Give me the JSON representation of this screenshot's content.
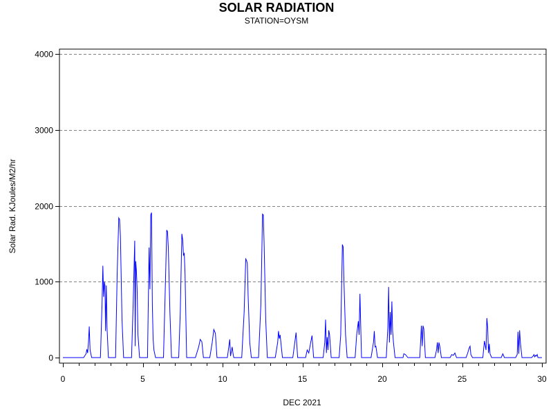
{
  "chart_data": {
    "type": "line",
    "title": "SOLAR RADIATION",
    "subtitle": "STATION=OYSM",
    "xlabel": "DEC 2021",
    "ylabel": "Solar Rad. KJoules/M2/hr",
    "xlim": [
      0,
      30
    ],
    "ylim": [
      0,
      4000
    ],
    "x_ticks": [
      0,
      5,
      10,
      15,
      20,
      25,
      30
    ],
    "y_ticks": [
      0,
      1000,
      2000,
      3000,
      4000
    ],
    "grid": "horizontal dashed",
    "line_color": "#0000ff",
    "series": [
      {
        "x": [
          0.0,
          1.3,
          1.45,
          1.5,
          1.55,
          1.6,
          1.65,
          1.7,
          1.8,
          2.35,
          2.45,
          2.5,
          2.55,
          2.6,
          2.63,
          2.67,
          2.72,
          2.76,
          2.85,
          3.3,
          3.4,
          3.5,
          3.55,
          3.6,
          3.7,
          3.8,
          4.3,
          4.4,
          4.5,
          4.53,
          4.56,
          4.6,
          4.65,
          4.7,
          4.8,
          5.3,
          5.4,
          5.45,
          5.5,
          5.55,
          5.6,
          5.65,
          5.7,
          5.8,
          6.3,
          6.4,
          6.5,
          6.55,
          6.6,
          6.7,
          6.8,
          7.25,
          7.35,
          7.45,
          7.5,
          7.55,
          7.6,
          7.65,
          7.75,
          8.3,
          8.5,
          8.6,
          8.7,
          8.8,
          9.2,
          9.35,
          9.45,
          9.55,
          9.65,
          10.3,
          10.45,
          10.5,
          10.55,
          10.6,
          10.65,
          10.7,
          11.2,
          11.35,
          11.45,
          11.5,
          11.55,
          11.6,
          11.7,
          11.8,
          12.25,
          12.4,
          12.5,
          12.55,
          12.6,
          12.7,
          12.8,
          13.3,
          13.45,
          13.5,
          13.55,
          13.6,
          13.75,
          14.4,
          14.5,
          14.6,
          14.7,
          15.2,
          15.3,
          15.4,
          15.5,
          15.6,
          15.7,
          16.3,
          16.4,
          16.45,
          16.5,
          16.55,
          16.6,
          16.65,
          16.7,
          16.8,
          17.3,
          17.4,
          17.5,
          17.55,
          17.6,
          17.7,
          17.8,
          18.3,
          18.4,
          18.5,
          18.55,
          18.6,
          18.7,
          19.3,
          19.45,
          19.5,
          19.55,
          19.6,
          19.7,
          20.25,
          20.35,
          20.4,
          20.45,
          20.5,
          20.55,
          20.6,
          20.65,
          20.7,
          20.8,
          21.3,
          21.35,
          21.45,
          21.6,
          22.35,
          22.45,
          22.5,
          22.55,
          22.6,
          22.7,
          23.3,
          23.4,
          23.45,
          23.5,
          23.55,
          23.6,
          23.7,
          24.25,
          24.35,
          24.45,
          24.55,
          24.65,
          25.25,
          25.35,
          25.45,
          25.5,
          25.55,
          25.65,
          26.3,
          26.4,
          26.5,
          26.55,
          26.6,
          26.65,
          26.7,
          26.75,
          26.85,
          27.45,
          27.55,
          27.65,
          28.35,
          28.45,
          28.5,
          28.55,
          28.6,
          28.65,
          28.75,
          29.35,
          29.45,
          29.5,
          29.55,
          29.6,
          29.65,
          29.7,
          29.75,
          30.0
        ],
        "y": [
          0,
          0,
          50,
          110,
          60,
          200,
          410,
          100,
          0,
          0,
          700,
          1210,
          800,
          1000,
          950,
          350,
          950,
          400,
          0,
          0,
          1100,
          1840,
          1820,
          1600,
          500,
          0,
          0,
          700,
          1540,
          150,
          1270,
          1150,
          900,
          300,
          0,
          0,
          1450,
          900,
          1880,
          1910,
          700,
          250,
          100,
          0,
          0,
          800,
          1680,
          1660,
          1450,
          600,
          0,
          0,
          600,
          1630,
          1550,
          1350,
          1370,
          1100,
          0,
          0,
          140,
          240,
          210,
          0,
          0,
          200,
          370,
          320,
          0,
          0,
          240,
          20,
          80,
          140,
          60,
          0,
          0,
          600,
          1300,
          1280,
          1240,
          800,
          200,
          0,
          0,
          700,
          1890,
          1880,
          1500,
          500,
          0,
          0,
          200,
          350,
          250,
          300,
          0,
          0,
          160,
          330,
          0,
          0,
          100,
          60,
          180,
          290,
          0,
          0,
          200,
          500,
          60,
          270,
          100,
          360,
          300,
          0,
          0,
          300,
          1490,
          1460,
          1000,
          300,
          0,
          0,
          300,
          480,
          300,
          840,
          0,
          0,
          200,
          350,
          140,
          150,
          0,
          0,
          400,
          930,
          200,
          600,
          300,
          740,
          350,
          200,
          0,
          0,
          50,
          40,
          0,
          0,
          420,
          150,
          420,
          380,
          0,
          0,
          100,
          200,
          60,
          200,
          150,
          0,
          0,
          40,
          30,
          60,
          0,
          0,
          60,
          130,
          150,
          40,
          0,
          0,
          220,
          100,
          520,
          400,
          60,
          180,
          50,
          0,
          0,
          50,
          0,
          0,
          40,
          340,
          50,
          360,
          200,
          0,
          0,
          20,
          40,
          10,
          30,
          20,
          40,
          0,
          0
        ]
      }
    ]
  }
}
